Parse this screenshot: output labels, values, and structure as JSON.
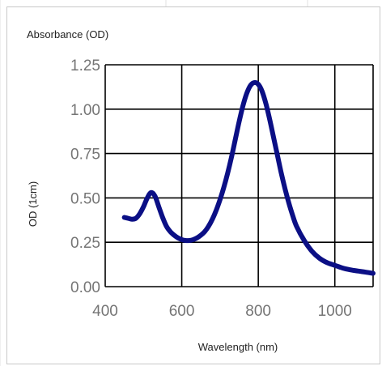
{
  "chart_data": {
    "type": "line",
    "title": "Absorbance (OD)",
    "xlabel": "Wavelength (nm)",
    "ylabel": "OD (1cm)",
    "xlim": [
      400,
      1100
    ],
    "ylim": [
      0,
      1.25
    ],
    "xticks": [
      "400",
      "600",
      "800",
      "1000"
    ],
    "yticks": [
      "0.00",
      "0.25",
      "0.50",
      "0.75",
      "1.00",
      "1.25"
    ],
    "grid": true,
    "legend": "none",
    "series": [
      {
        "color": "#0b0f85",
        "x": [
          450,
          460,
          470,
          480,
          490,
          500,
          510,
          520,
          530,
          540,
          550,
          560,
          570,
          580,
          590,
          600,
          610,
          620,
          630,
          640,
          650,
          660,
          670,
          680,
          690,
          700,
          710,
          720,
          730,
          740,
          750,
          760,
          770,
          780,
          790,
          800,
          810,
          820,
          830,
          840,
          850,
          860,
          870,
          880,
          890,
          900,
          920,
          940,
          960,
          980,
          1000,
          1020,
          1040,
          1060,
          1080,
          1100
        ],
        "y": [
          0.39,
          0.385,
          0.38,
          0.385,
          0.41,
          0.45,
          0.5,
          0.53,
          0.51,
          0.45,
          0.39,
          0.34,
          0.31,
          0.29,
          0.275,
          0.265,
          0.26,
          0.26,
          0.265,
          0.275,
          0.29,
          0.31,
          0.34,
          0.38,
          0.43,
          0.49,
          0.56,
          0.64,
          0.73,
          0.83,
          0.93,
          1.02,
          1.09,
          1.135,
          1.15,
          1.14,
          1.1,
          1.03,
          0.94,
          0.84,
          0.74,
          0.64,
          0.55,
          0.47,
          0.4,
          0.34,
          0.26,
          0.2,
          0.16,
          0.135,
          0.12,
          0.105,
          0.095,
          0.088,
          0.082,
          0.075
        ]
      }
    ]
  }
}
